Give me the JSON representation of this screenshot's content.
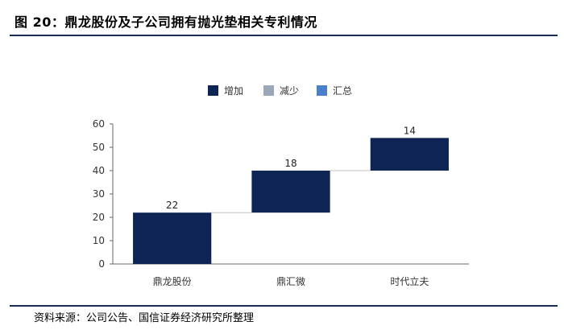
{
  "header": {
    "title": "图 20：鼎龙股份及子公司拥有抛光垫相关专利情况"
  },
  "footer": {
    "source": "资料来源：公司公告、国信证券经济研究所整理"
  },
  "chart_data": {
    "type": "bar",
    "subtype": "waterfall",
    "categories": [
      "鼎龙股份",
      "鼎汇微",
      "时代立夫"
    ],
    "values": [
      22,
      18,
      14
    ],
    "bases": [
      0,
      22,
      40
    ],
    "data_labels": [
      "22",
      "18",
      "14"
    ],
    "legend": [
      {
        "label": "增加",
        "color": "#0d2454"
      },
      {
        "label": "减少",
        "color": "#9aa7b8"
      },
      {
        "label": "汇总",
        "color": "#4a7fc9"
      }
    ],
    "legend_position": "top",
    "ylim": [
      0,
      60
    ],
    "yticks": [
      0,
      10,
      20,
      30,
      40,
      50,
      60
    ],
    "grid": false,
    "connector_color": "#c0c0c0",
    "title": "",
    "xlabel": "",
    "ylabel": ""
  }
}
